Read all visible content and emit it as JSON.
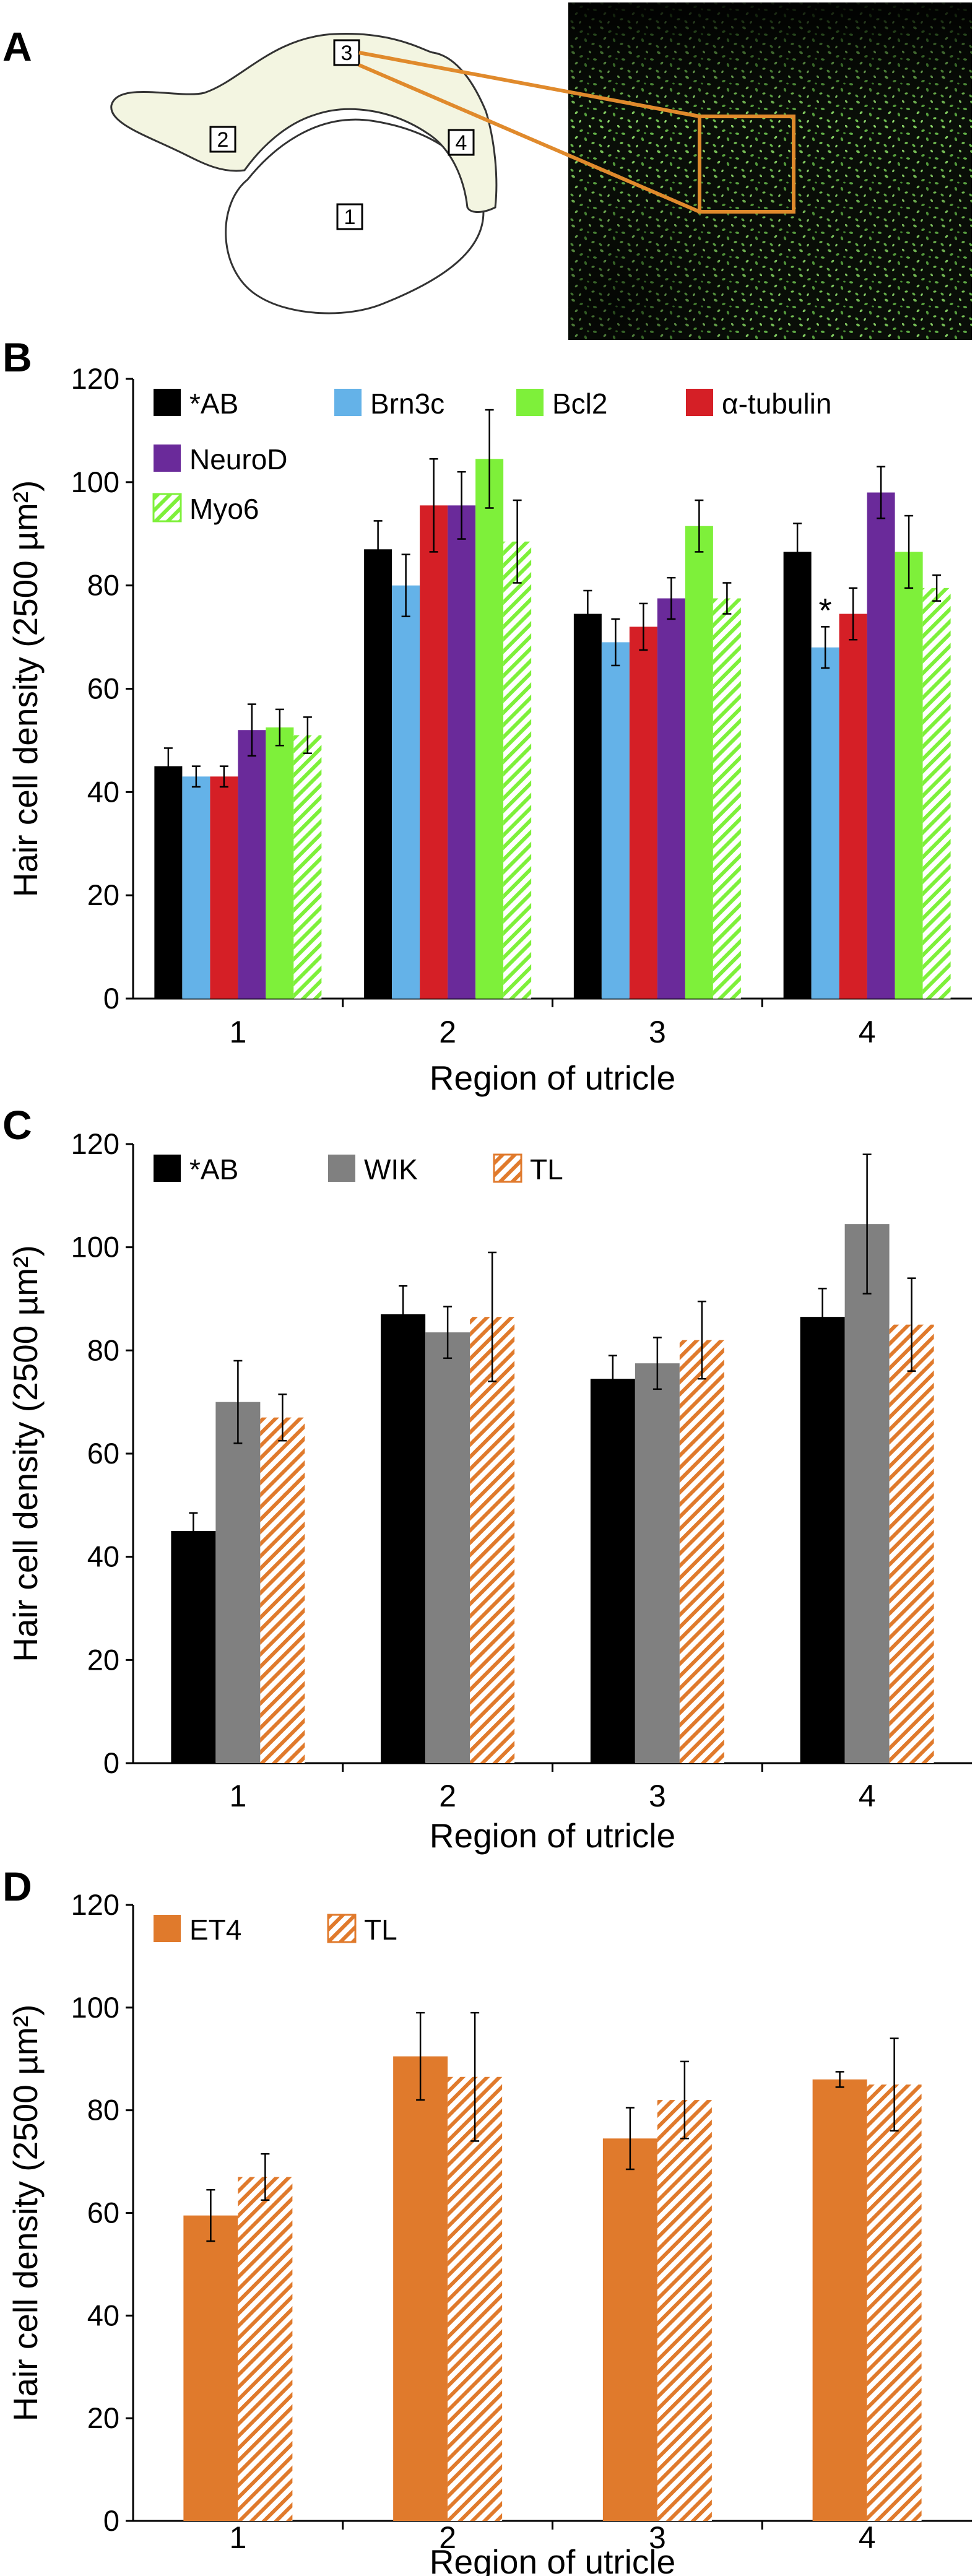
{
  "colors": {
    "AB": "#000000",
    "Brn3c": "#64b2e8",
    "Bcl2": "#7ef03a",
    "alpha_tubulin": "#d51f26",
    "NeuroD": "#6a2a9a",
    "Myo6": "#7ef03a",
    "WIK": "#808080",
    "TL": "#e07a2c",
    "ET4": "#e07a2c",
    "callout": "#e08a2c",
    "utricle_band": "#f3f5e1"
  },
  "panel_a": {
    "letter": "A",
    "region_labels": [
      "1",
      "2",
      "3",
      "4"
    ],
    "micrograph": "green fluorescent hair-cell micrograph with orange inset box"
  },
  "chart_data": [
    {
      "panel": "B",
      "type": "bar",
      "categories": [
        "1",
        "2",
        "3",
        "4"
      ],
      "xlabel": "Region of utricle",
      "ylabel": "Hair cell density (2500 µm²)",
      "ylim": [
        0,
        120
      ],
      "yticks": [
        "0",
        "20",
        "40",
        "60",
        "80",
        "100",
        "120"
      ],
      "legend_position": "top-left",
      "series": [
        {
          "name": "*AB",
          "values": [
            45,
            87,
            74.5,
            86.5
          ],
          "errors": [
            3.5,
            5.5,
            4.5,
            5.5
          ],
          "pattern": "solid",
          "color_key": "AB"
        },
        {
          "name": "Brn3c",
          "values": [
            43,
            80,
            69,
            68
          ],
          "errors": [
            2,
            6,
            4.5,
            4
          ],
          "pattern": "solid",
          "color_key": "Brn3c"
        },
        {
          "name": "α-tubulin",
          "values": [
            43,
            95.5,
            72,
            74.5
          ],
          "errors": [
            2,
            9,
            4.5,
            5
          ],
          "pattern": "solid",
          "color_key": "alpha_tubulin"
        },
        {
          "name": "NeuroD",
          "values": [
            52,
            95.5,
            77.5,
            98
          ],
          "errors": [
            5,
            6.5,
            4,
            5
          ],
          "pattern": "solid",
          "color_key": "NeuroD"
        },
        {
          "name": "Bcl2",
          "values": [
            52.5,
            104.5,
            91.5,
            86.5
          ],
          "errors": [
            3.5,
            9.5,
            5,
            7
          ],
          "pattern": "solid",
          "color_key": "Bcl2"
        },
        {
          "name": "Myo6",
          "values": [
            51,
            88.5,
            77.5,
            79.5
          ],
          "errors": [
            3.5,
            8,
            3,
            2.5
          ],
          "pattern": "hatch",
          "color_key": "Myo6"
        }
      ],
      "legend_order": [
        "*AB",
        "Brn3c",
        "Bcl2",
        "α-tubulin",
        "NeuroD",
        "Myo6"
      ],
      "annotations": [
        {
          "text": "*",
          "category": "4",
          "series": "Brn3c"
        }
      ]
    },
    {
      "panel": "C",
      "type": "bar",
      "categories": [
        "1",
        "2",
        "3",
        "4"
      ],
      "xlabel": "Region of utricle",
      "ylabel": "Hair cell density (2500 µm²)",
      "ylim": [
        0,
        120
      ],
      "yticks": [
        "0",
        "20",
        "40",
        "60",
        "80",
        "100",
        "120"
      ],
      "legend_position": "top-left",
      "series": [
        {
          "name": "*AB",
          "values": [
            45,
            87,
            74.5,
            86.5
          ],
          "errors": [
            3.5,
            5.5,
            4.5,
            5.5
          ],
          "pattern": "solid",
          "color_key": "AB"
        },
        {
          "name": "WIK",
          "values": [
            70,
            83.5,
            77.5,
            104.5
          ],
          "errors": [
            8,
            5,
            5,
            13.5
          ],
          "pattern": "solid",
          "color_key": "WIK"
        },
        {
          "name": "TL",
          "values": [
            67,
            86.5,
            82,
            85
          ],
          "errors": [
            4.5,
            12.5,
            7.5,
            9
          ],
          "pattern": "hatch",
          "color_key": "TL"
        }
      ],
      "legend_order": [
        "*AB",
        "WIK",
        "TL"
      ],
      "annotations": []
    },
    {
      "panel": "D",
      "type": "bar",
      "categories": [
        "1",
        "2",
        "3",
        "4"
      ],
      "xlabel": "Region of utricle",
      "ylabel": "Hair cell density (2500 µm²)",
      "ylim": [
        0,
        120
      ],
      "yticks": [
        "0",
        "20",
        "40",
        "60",
        "80",
        "100",
        "120"
      ],
      "legend_position": "top-left",
      "series": [
        {
          "name": "ET4",
          "values": [
            59.5,
            90.5,
            74.5,
            86
          ],
          "errors": [
            5,
            8.5,
            6,
            1.5
          ],
          "pattern": "solid",
          "color_key": "ET4"
        },
        {
          "name": "TL",
          "values": [
            67,
            86.5,
            82,
            85
          ],
          "errors": [
            4.5,
            12.5,
            7.5,
            9
          ],
          "pattern": "hatch",
          "color_key": "TL"
        }
      ],
      "legend_order": [
        "ET4",
        "TL"
      ],
      "annotations": []
    }
  ]
}
